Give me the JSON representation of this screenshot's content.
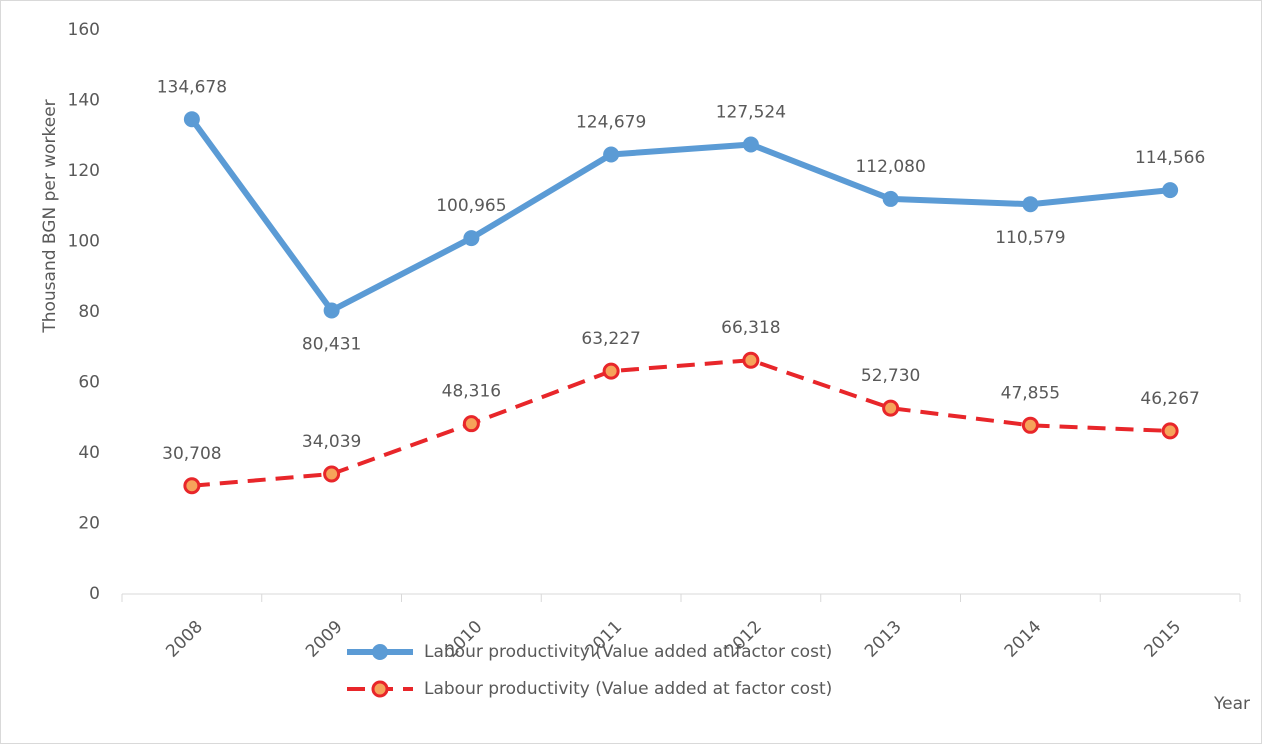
{
  "chart_data": {
    "type": "line",
    "y_label": "Thousand BGN per workeer",
    "x_label": "Year",
    "categories": [
      "2008",
      "2009",
      "2010",
      "2011",
      "2012",
      "2013",
      "2014",
      "2015"
    ],
    "series": [
      {
        "name": "Labour productivity (Value added at factor cost)",
        "color": "#5b9bd5",
        "dash": false,
        "values": [
          134.678,
          80.431,
          100.965,
          124.679,
          127.524,
          112.08,
          110.579,
          114.566
        ],
        "value_labels": [
          "134,678",
          "80,431",
          "100,965",
          "124,679",
          "127,524",
          "112,080",
          "110,579",
          "114,566"
        ]
      },
      {
        "name": "Labour productivity (Value added at factor cost)",
        "color": "#e8262a",
        "marker_fill": "#f6a35a",
        "dash": true,
        "values": [
          30.708,
          34.039,
          48.316,
          63.227,
          66.318,
          52.73,
          47.855,
          46.267
        ],
        "value_labels": [
          "30,708",
          "34,039",
          "48,316",
          "63,227",
          "66,318",
          "52,730",
          "47,855",
          "46,267"
        ]
      }
    ],
    "ylim": [
      0,
      160
    ],
    "yticks": [
      0,
      20,
      40,
      60,
      80,
      100,
      120,
      140,
      160
    ],
    "grid": false
  }
}
